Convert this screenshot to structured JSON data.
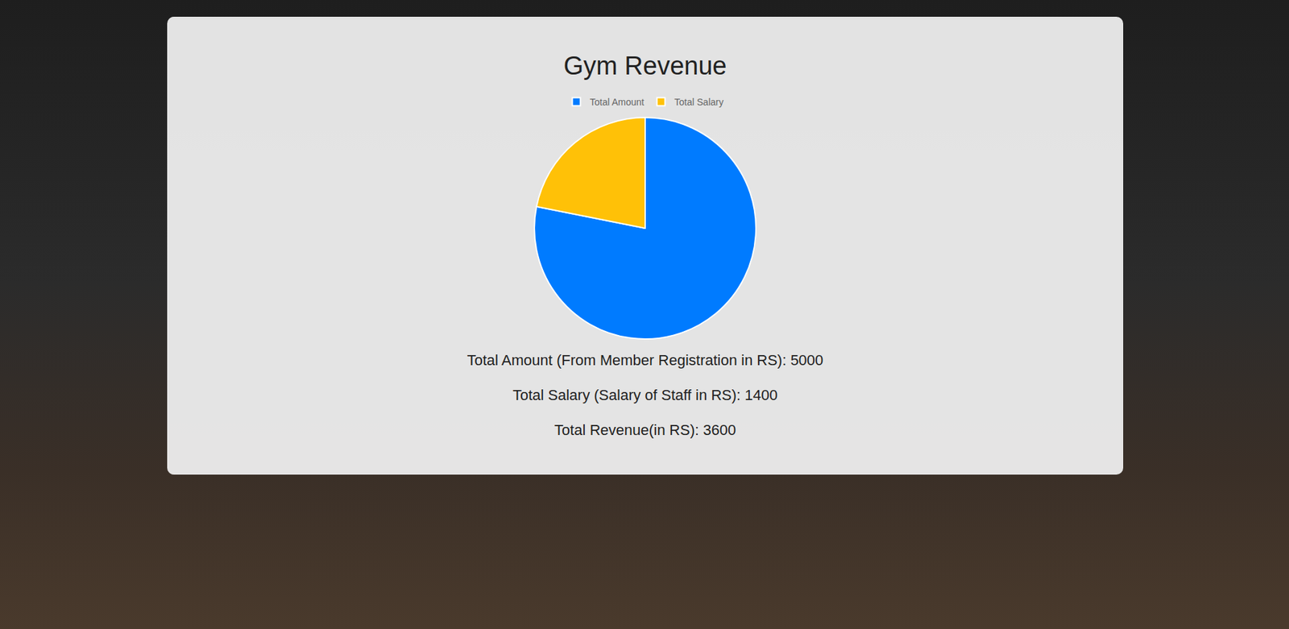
{
  "chart_data": {
    "type": "pie",
    "title": "Gym Revenue",
    "categories": [
      "Total Amount",
      "Total Salary"
    ],
    "values": [
      5000,
      1400
    ],
    "colors": [
      "#007bff",
      "#ffc107"
    ],
    "legend": "top",
    "annotations": [
      "Total Amount (From Member Registration in RS): 5000",
      "Total Salary (Salary of Staff in RS): 1400",
      "Total Revenue(in RS): 3600"
    ]
  }
}
